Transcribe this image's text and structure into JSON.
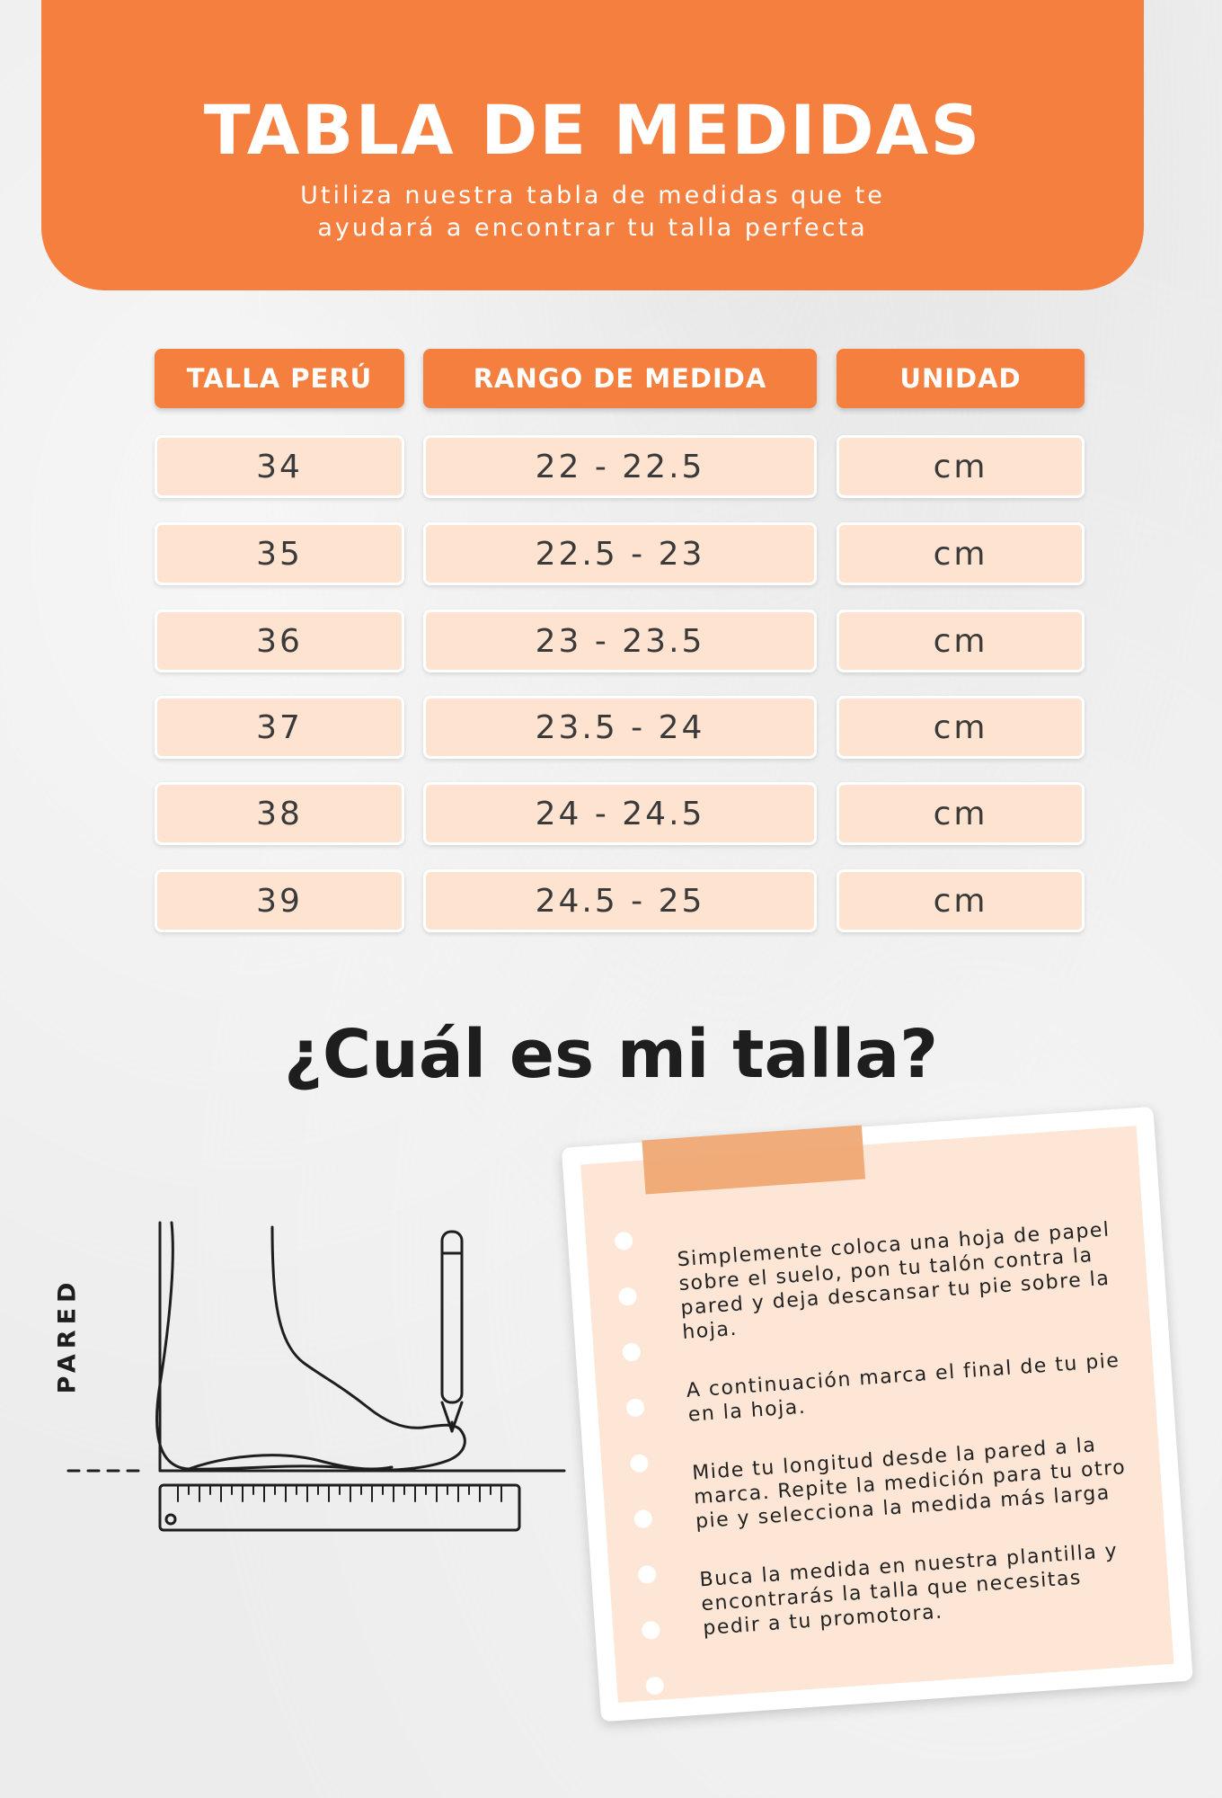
{
  "header": {
    "title": "TABLA DE MEDIDAS",
    "subtitle_line1": "Utiliza nuestra tabla de medidas que te",
    "subtitle_line2": "ayudará a encontrar tu talla perfecta"
  },
  "table": {
    "columns": [
      "TALLA PERÚ",
      "RANGO DE MEDIDA",
      "UNIDAD"
    ],
    "rows": [
      [
        "34",
        "22 - 22.5",
        "cm"
      ],
      [
        "35",
        "22.5 - 23",
        "cm"
      ],
      [
        "36",
        "23 - 23.5",
        "cm"
      ],
      [
        "37",
        "23.5 - 24",
        "cm"
      ],
      [
        "38",
        "24 - 24.5",
        "cm"
      ],
      [
        "39",
        "24.5 - 25",
        "cm"
      ]
    ]
  },
  "question": "¿Cuál es mi talla?",
  "illustration": {
    "wall_label": "PARED",
    "icons": [
      "foot-outline-icon",
      "pencil-icon",
      "ruler-icon"
    ]
  },
  "note": {
    "steps": [
      "Simplemente coloca una hoja de papel sobre el suelo, pon tu talón contra la pared y deja descansar tu pie sobre la hoja.",
      "A continuación marca el final de tu pie en la hoja.",
      "Mide tu longitud desde la pared a la marca. Repite la medición para tu otro pie y selecciona la medida más larga",
      "Buca la medida en nuestra plantilla y encontrarás la talla que necesitas pedir a tu promotora."
    ]
  },
  "colors": {
    "accent": "#f57f3f",
    "cell_fill": "#fde3d0",
    "note_fill": "#fde6d6",
    "tape": "#f0a874"
  }
}
